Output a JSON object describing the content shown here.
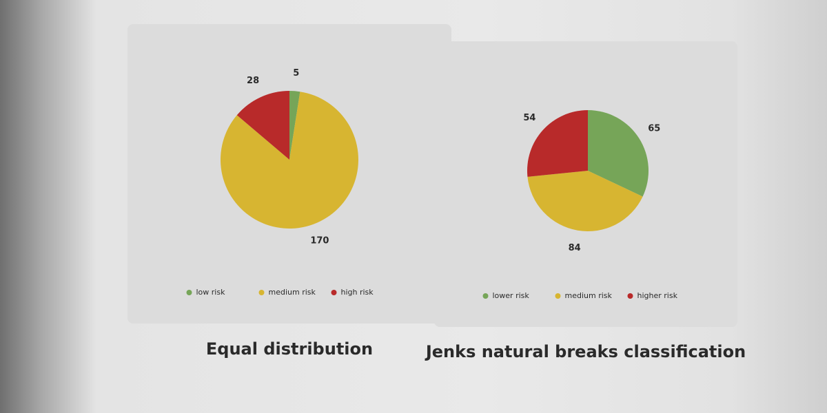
{
  "chart_data": [
    {
      "type": "pie",
      "title": "Equal distribution",
      "categories": [
        "low risk",
        "medium risk",
        "high risk"
      ],
      "values": [
        5,
        170,
        28
      ],
      "colors": [
        "#76a558",
        "#d7b531",
        "#b82a2a"
      ]
    },
    {
      "type": "pie",
      "title": "Jenks natural breaks classification",
      "categories": [
        "lower risk",
        "medium risk",
        "higher risk"
      ],
      "values": [
        65,
        84,
        54
      ],
      "colors": [
        "#76a558",
        "#d7b531",
        "#b82a2a"
      ]
    }
  ]
}
